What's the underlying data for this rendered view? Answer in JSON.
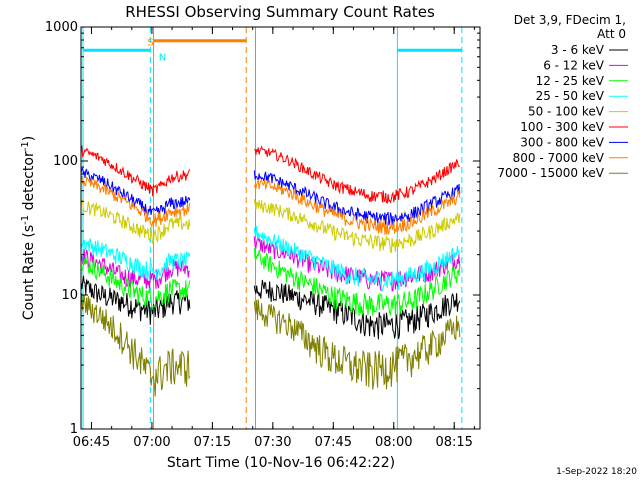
{
  "chart_data": {
    "type": "line",
    "title": "RHESSI Observing Summary Count Rates",
    "xlabel": "Start Time (10-Nov-16 06:42:22)",
    "ylabel_main": "Count Rate (s",
    "ylabel_sup1": "-1",
    "ylabel_mid": " detector",
    "ylabel_sup2": "-1",
    "ylabel_end": ")",
    "x_unit": "minutes after 06:42:22",
    "xlim": [
      0,
      99
    ],
    "ylim": [
      1,
      1000
    ],
    "y_scale": "log",
    "x_ticks": [
      {
        "label": "06:45",
        "value": 2.6
      },
      {
        "label": "07:00",
        "value": 17.6
      },
      {
        "label": "07:15",
        "value": 32.6
      },
      {
        "label": "07:30",
        "value": 47.6
      },
      {
        "label": "07:45",
        "value": 62.6
      },
      {
        "label": "08:00",
        "value": 77.6
      },
      {
        "label": "08:15",
        "value": 92.6
      }
    ],
    "y_ticks": [
      {
        "label": "1",
        "value": 1
      },
      {
        "label": "10",
        "value": 10
      },
      {
        "label": "100",
        "value": 100
      },
      {
        "label": "1000",
        "value": 1000
      }
    ],
    "legend": {
      "header": [
        "Det 3,9, FDecim 1,",
        "Att 0"
      ],
      "placement": "right"
    },
    "series": [
      {
        "name": "3 - 6 keV",
        "color": "#000000",
        "segments": [
          [
            [
              0,
              12
            ],
            [
              5,
              10
            ],
            [
              10,
              9
            ],
            [
              15,
              8
            ],
            [
              18,
              7.5
            ],
            [
              20,
              8
            ],
            [
              22,
              9
            ],
            [
              27,
              9
            ]
          ],
          [
            [
              43,
              11
            ],
            [
              47,
              11
            ],
            [
              52,
              10
            ],
            [
              57,
              9
            ],
            [
              62,
              8
            ],
            [
              67,
              7
            ],
            [
              72,
              6
            ],
            [
              77,
              6
            ],
            [
              82,
              6.5
            ],
            [
              87,
              7.5
            ],
            [
              92,
              9
            ],
            [
              94,
              9.5
            ]
          ]
        ]
      },
      {
        "name": "6 - 12 keV",
        "color": "#e000e0",
        "segments": [
          [
            [
              0,
              20
            ],
            [
              5,
              17
            ],
            [
              10,
              14
            ],
            [
              15,
              13
            ],
            [
              18,
              13
            ],
            [
              20,
              14
            ],
            [
              22,
              16
            ],
            [
              27,
              16
            ]
          ],
          [
            [
              43,
              25
            ],
            [
              47,
              22
            ],
            [
              52,
              20
            ],
            [
              57,
              17
            ],
            [
              62,
              15
            ],
            [
              67,
              14
            ],
            [
              72,
              13
            ],
            [
              77,
              13
            ],
            [
              82,
              14
            ],
            [
              87,
              15
            ],
            [
              92,
              18
            ],
            [
              94,
              19
            ]
          ]
        ]
      },
      {
        "name": "12 - 25 keV",
        "color": "#00ff00",
        "segments": [
          [
            [
              0,
              18
            ],
            [
              5,
              15
            ],
            [
              10,
              12
            ],
            [
              15,
              10
            ],
            [
              18,
              9.5
            ],
            [
              20,
              10
            ],
            [
              22,
              11
            ],
            [
              27,
              11
            ]
          ],
          [
            [
              43,
              20
            ],
            [
              47,
              17
            ],
            [
              52,
              14
            ],
            [
              57,
              12
            ],
            [
              62,
              10
            ],
            [
              67,
              9
            ],
            [
              72,
              8.5
            ],
            [
              77,
              8.5
            ],
            [
              82,
              9
            ],
            [
              87,
              11
            ],
            [
              92,
              14
            ],
            [
              94,
              15
            ]
          ]
        ]
      },
      {
        "name": "25 - 50 keV",
        "color": "#00ffff",
        "segments": [
          [
            [
              0,
              25
            ],
            [
              5,
              22
            ],
            [
              10,
              19
            ],
            [
              15,
              16
            ],
            [
              18,
              15
            ],
            [
              20,
              16
            ],
            [
              22,
              18
            ],
            [
              27,
              18
            ]
          ],
          [
            [
              43,
              30
            ],
            [
              47,
              26
            ],
            [
              52,
              22
            ],
            [
              57,
              19
            ],
            [
              62,
              16
            ],
            [
              67,
              14
            ],
            [
              72,
              13
            ],
            [
              77,
              13
            ],
            [
              82,
              14
            ],
            [
              87,
              16
            ],
            [
              92,
              20
            ],
            [
              94,
              21
            ]
          ]
        ]
      },
      {
        "name": "50 - 100 keV",
        "color": "#cccc00",
        "segments": [
          [
            [
              0,
              47
            ],
            [
              5,
              42
            ],
            [
              10,
              36
            ],
            [
              15,
              30
            ],
            [
              18,
              28
            ],
            [
              20,
              30
            ],
            [
              22,
              34
            ],
            [
              27,
              34
            ]
          ],
          [
            [
              43,
              47
            ],
            [
              47,
              45
            ],
            [
              52,
              40
            ],
            [
              57,
              35
            ],
            [
              62,
              30
            ],
            [
              67,
              27
            ],
            [
              72,
              25
            ],
            [
              77,
              24
            ],
            [
              82,
              26
            ],
            [
              87,
              30
            ],
            [
              92,
              36
            ],
            [
              94,
              38
            ]
          ]
        ]
      },
      {
        "name": "100 - 300 keV",
        "color": "#ff0000",
        "segments": [
          [
            [
              0,
              120
            ],
            [
              5,
              105
            ],
            [
              10,
              85
            ],
            [
              15,
              68
            ],
            [
              18,
              60
            ],
            [
              20,
              65
            ],
            [
              22,
              75
            ],
            [
              27,
              80
            ]
          ],
          [
            [
              43,
              120
            ],
            [
              47,
              115
            ],
            [
              52,
              100
            ],
            [
              57,
              82
            ],
            [
              62,
              68
            ],
            [
              67,
              60
            ],
            [
              72,
              55
            ],
            [
              77,
              54
            ],
            [
              82,
              60
            ],
            [
              87,
              72
            ],
            [
              92,
              90
            ],
            [
              94,
              98
            ]
          ]
        ]
      },
      {
        "name": "300 - 800 keV",
        "color": "#0000ff",
        "segments": [
          [
            [
              0,
              82
            ],
            [
              5,
              72
            ],
            [
              10,
              58
            ],
            [
              15,
              46
            ],
            [
              18,
              40
            ],
            [
              20,
              43
            ],
            [
              22,
              48
            ],
            [
              27,
              50
            ]
          ],
          [
            [
              43,
              80
            ],
            [
              47,
              75
            ],
            [
              52,
              65
            ],
            [
              57,
              55
            ],
            [
              62,
              46
            ],
            [
              67,
              41
            ],
            [
              72,
              38
            ],
            [
              77,
              37
            ],
            [
              82,
              40
            ],
            [
              87,
              48
            ],
            [
              92,
              57
            ],
            [
              94,
              62
            ]
          ]
        ]
      },
      {
        "name": "800 - 7000 keV",
        "color": "#ff8000",
        "segments": [
          [
            [
              0,
              72
            ],
            [
              5,
              63
            ],
            [
              10,
              52
            ],
            [
              15,
              42
            ],
            [
              18,
              36
            ],
            [
              20,
              38
            ],
            [
              22,
              42
            ],
            [
              27,
              44
            ]
          ],
          [
            [
              43,
              68
            ],
            [
              47,
              65
            ],
            [
              52,
              58
            ],
            [
              57,
              48
            ],
            [
              62,
              41
            ],
            [
              67,
              36
            ],
            [
              72,
              33
            ],
            [
              77,
              32
            ],
            [
              82,
              35
            ],
            [
              87,
              42
            ],
            [
              92,
              50
            ],
            [
              94,
              55
            ]
          ]
        ]
      },
      {
        "name": "7000 - 15000 keV",
        "color": "#808000",
        "segments": [
          [
            [
              0,
              9
            ],
            [
              5,
              7
            ],
            [
              10,
              5
            ],
            [
              14,
              3.5
            ],
            [
              17,
              2.5
            ],
            [
              20,
              2.7
            ],
            [
              22,
              3
            ],
            [
              27,
              3
            ]
          ],
          [
            [
              43,
              8
            ],
            [
              47,
              7
            ],
            [
              52,
              6
            ],
            [
              57,
              4.5
            ],
            [
              62,
              3.5
            ],
            [
              67,
              3
            ],
            [
              72,
              2.8
            ],
            [
              77,
              3
            ],
            [
              82,
              3.5
            ],
            [
              87,
              4.2
            ],
            [
              92,
              5.5
            ],
            [
              94,
              6
            ]
          ]
        ]
      }
    ],
    "state_bars": [
      {
        "name": "cyan-bar-left",
        "color": "#00e5ff",
        "y_value": 670,
        "x_start": 0.5,
        "x_end": 17.2
      },
      {
        "name": "orange-bar",
        "color": "#ff8000",
        "y_value": 790,
        "x_start": 18,
        "x_end": 41
      },
      {
        "name": "cyan-bar-right",
        "color": "#00e5ff",
        "y_value": 670,
        "x_start": 78.5,
        "x_end": 94.5
      }
    ],
    "state_lines": [
      {
        "color": "#00e5ff",
        "dash": false,
        "x": 0.5
      },
      {
        "color": "#00e5ff",
        "dash": true,
        "x": 17.2
      },
      {
        "color": "#ff8000",
        "dash": false,
        "x": 18
      },
      {
        "color": "#ff8000",
        "dash": true,
        "x": 41
      },
      {
        "color": "#ff8000",
        "dash": false,
        "x": 43.3
      },
      {
        "color": "#00e5ff",
        "dash": false,
        "x": 78.5
      },
      {
        "color": "#00e5ff",
        "dash": true,
        "x": 94.5
      }
    ],
    "state_labels": [
      {
        "text": "S",
        "color": "#ff8000",
        "x": 16.5,
        "y_value": 780
      },
      {
        "text": "N",
        "color": "#00e5ff",
        "x": 19.3,
        "y_value": 600
      }
    ]
  },
  "footer": {
    "timestamp": "1-Sep-2022 18:20"
  }
}
